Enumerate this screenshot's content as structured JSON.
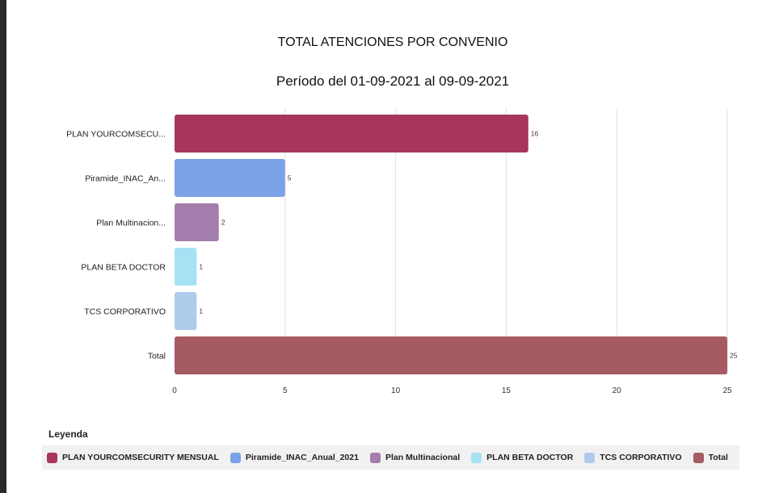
{
  "chart_data": {
    "type": "bar",
    "orientation": "horizontal",
    "title": "TOTAL ATENCIONES POR CONVENIO",
    "subtitle": "Período del 01-09-2021 al 09-09-2021",
    "categories": [
      "PLAN YOURCOMSECU...",
      "Piramide_INAC_An...",
      "Plan Multinacion...",
      "PLAN BETA DOCTOR",
      "TCS CORPORATIVO",
      "Total"
    ],
    "values": [
      16,
      5,
      2,
      1,
      1,
      25
    ],
    "colors": [
      "#a8365a",
      "#7ba2e6",
      "#a37eac",
      "#a6e2f4",
      "#aecbec",
      "#a65a62"
    ],
    "xlim": [
      0,
      25
    ],
    "xticks": [
      0,
      5,
      10,
      15,
      20,
      25
    ],
    "grid": true,
    "legend_position": "bottom"
  },
  "legend": {
    "title": "Leyenda",
    "items": [
      {
        "label": "PLAN YOURCOMSECURITY MENSUAL",
        "color": "#a8365a"
      },
      {
        "label": "Piramide_INAC_Anual_2021",
        "color": "#7ba2e6"
      },
      {
        "label": "Plan Multinacional",
        "color": "#a37eac"
      },
      {
        "label": "PLAN BETA DOCTOR",
        "color": "#a6e2f4"
      },
      {
        "label": "TCS CORPORATIVO",
        "color": "#aecbec"
      },
      {
        "label": "Total",
        "color": "#a65a62"
      }
    ]
  }
}
